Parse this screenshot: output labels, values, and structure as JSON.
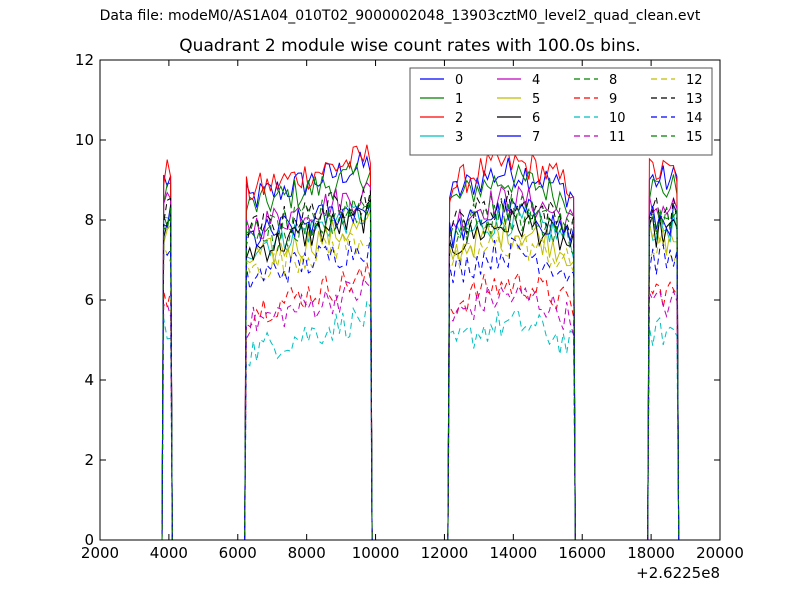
{
  "header": {
    "suptitle": "Data file: modeM0/AS1A04_010T02_9000002048_13903cztM0_level2_quad_clean.evt"
  },
  "chart_data": {
    "type": "line",
    "title": "Quadrant 2 module wise count rates with 100.0s bins.",
    "xlabel": "",
    "ylabel": "",
    "x_offset_label": "+2.6225e8",
    "xlim": [
      2000,
      20000
    ],
    "ylim": [
      0,
      12
    ],
    "xticks": [
      "2000",
      "4000",
      "6000",
      "8000",
      "10000",
      "12000",
      "14000",
      "16000",
      "18000",
      "20000"
    ],
    "yticks": [
      "0",
      "2",
      "4",
      "6",
      "8",
      "10",
      "12"
    ],
    "grid": false,
    "legend_position": "top-right",
    "legend_columns": 4,
    "segments": [
      [
        3850,
        4050
      ],
      [
        6250,
        9850
      ],
      [
        12150,
        15750
      ],
      [
        17950,
        18750
      ]
    ],
    "series": [
      {
        "name": "0",
        "color": "#0000ff",
        "dash": "solid",
        "level": 8.8
      },
      {
        "name": "1",
        "color": "#008000",
        "dash": "solid",
        "level": 8.6
      },
      {
        "name": "2",
        "color": "#ff0000",
        "dash": "solid",
        "level": 9.0
      },
      {
        "name": "3",
        "color": "#00bfbf",
        "dash": "solid",
        "level": 7.6
      },
      {
        "name": "4",
        "color": "#bf00bf",
        "dash": "solid",
        "level": 8.1
      },
      {
        "name": "5",
        "color": "#bfbf00",
        "dash": "solid",
        "level": 7.3
      },
      {
        "name": "6",
        "color": "#000000",
        "dash": "solid",
        "level": 7.5
      },
      {
        "name": "7",
        "color": "#0000ff",
        "dash": "solid",
        "level": 7.8
      },
      {
        "name": "8",
        "color": "#008000",
        "dash": "dashed",
        "level": 7.7
      },
      {
        "name": "9",
        "color": "#ff0000",
        "dash": "dashed",
        "level": 6.0
      },
      {
        "name": "10",
        "color": "#00bfbf",
        "dash": "dashed",
        "level": 5.0
      },
      {
        "name": "11",
        "color": "#bf00bf",
        "dash": "dashed",
        "level": 5.7
      },
      {
        "name": "12",
        "color": "#bfbf00",
        "dash": "dashed",
        "level": 7.0
      },
      {
        "name": "13",
        "color": "#000000",
        "dash": "dashed",
        "level": 8.0
      },
      {
        "name": "14",
        "color": "#0000ff",
        "dash": "dashed",
        "level": 6.8
      },
      {
        "name": "15",
        "color": "#008000",
        "dash": "dashed",
        "level": 7.9
      }
    ]
  }
}
